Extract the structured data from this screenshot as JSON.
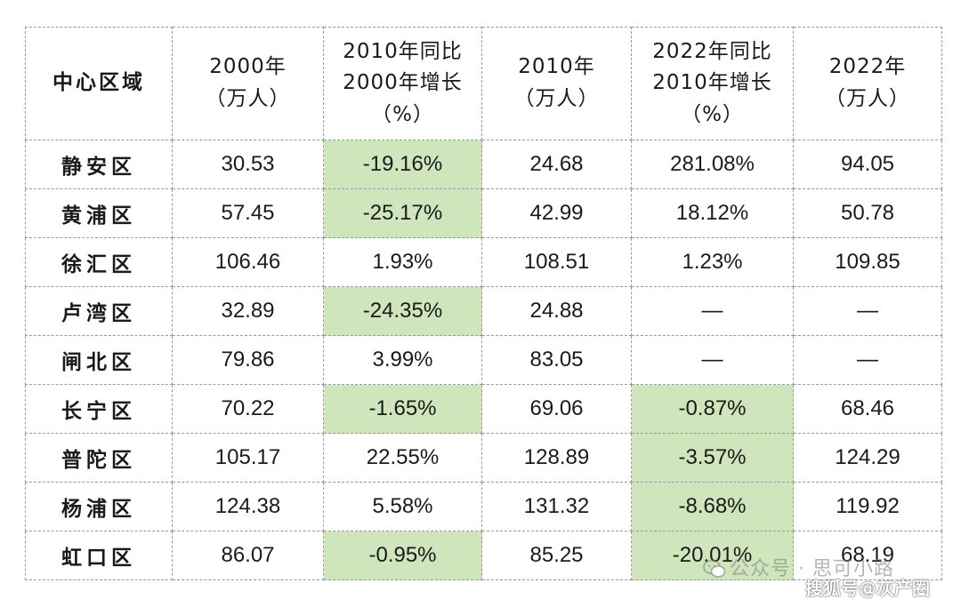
{
  "header": {
    "col0": [
      "中心区域"
    ],
    "col1": [
      "2000年",
      "（万人）"
    ],
    "col2": [
      "2010年同比",
      "2000年增长",
      "（%）"
    ],
    "col3": [
      "2010年",
      "（万人）"
    ],
    "col4": [
      "2022年同比",
      "2010年增长",
      "（%）"
    ],
    "col5": [
      "2022年",
      "（万人）"
    ]
  },
  "rows": [
    {
      "district": "静安区",
      "pop2000": "30.53",
      "growth2010": "-19.16%",
      "pop2010": "24.68",
      "growth2022": "281.08%",
      "pop2022": "94.05",
      "hl2010": true,
      "hl2022": false
    },
    {
      "district": "黄浦区",
      "pop2000": "57.45",
      "growth2010": "-25.17%",
      "pop2010": "42.99",
      "growth2022": "18.12%",
      "pop2022": "50.78",
      "hl2010": true,
      "hl2022": false
    },
    {
      "district": "徐汇区",
      "pop2000": "106.46",
      "growth2010": "1.93%",
      "pop2010": "108.51",
      "growth2022": "1.23%",
      "pop2022": "109.85",
      "hl2010": false,
      "hl2022": false
    },
    {
      "district": "卢湾区",
      "pop2000": "32.89",
      "growth2010": "-24.35%",
      "pop2010": "24.88",
      "growth2022": "—",
      "pop2022": "—",
      "hl2010": true,
      "hl2022": false
    },
    {
      "district": "闸北区",
      "pop2000": "79.86",
      "growth2010": "3.99%",
      "pop2010": "83.05",
      "growth2022": "—",
      "pop2022": "—",
      "hl2010": false,
      "hl2022": false
    },
    {
      "district": "长宁区",
      "pop2000": "70.22",
      "growth2010": "-1.65%",
      "pop2010": "69.06",
      "growth2022": "-0.87%",
      "pop2022": "68.46",
      "hl2010": true,
      "hl2022": true
    },
    {
      "district": "普陀区",
      "pop2000": "105.17",
      "growth2010": "22.55%",
      "pop2010": "128.89",
      "growth2022": "-3.57%",
      "pop2022": "124.29",
      "hl2010": false,
      "hl2022": true
    },
    {
      "district": "杨浦区",
      "pop2000": "124.38",
      "growth2010": "5.58%",
      "pop2010": "131.32",
      "growth2022": "-8.68%",
      "pop2022": "119.92",
      "hl2010": false,
      "hl2022": true
    },
    {
      "district": "虹口区",
      "pop2000": "86.07",
      "growth2010": "-0.95%",
      "pop2010": "85.25",
      "growth2022": "-20.01%",
      "pop2022": "68.19",
      "hl2010": true,
      "hl2022": true
    }
  ],
  "highlight_color": "#cfe6bc",
  "watermarks": {
    "brand": "公众号 · 思可小路",
    "brand_icon": "wechat-icon",
    "sohu": "搜狐号@灰产圈"
  }
}
